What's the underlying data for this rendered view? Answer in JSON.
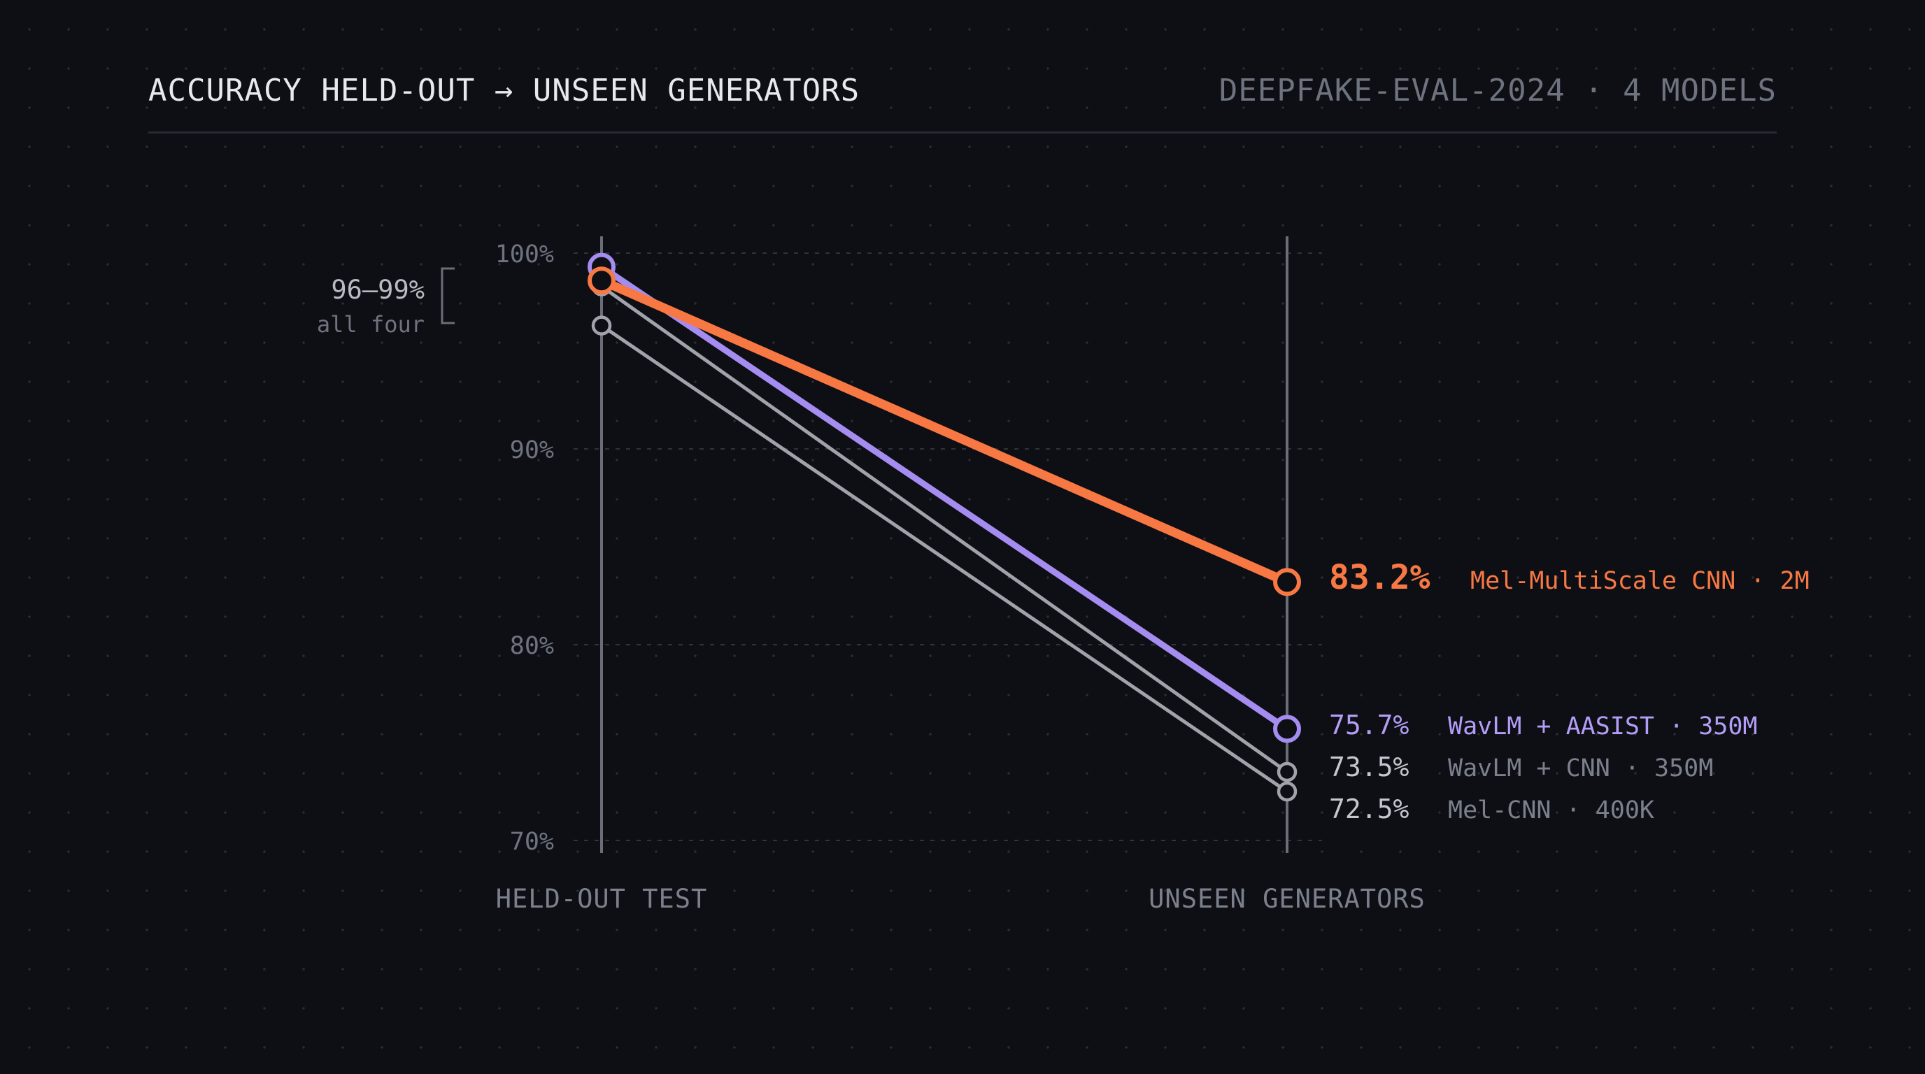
{
  "header": {
    "title": "ACCURACY HELD-OUT → UNSEEN GENERATORS",
    "subtitle": "DEEPFAKE-EVAL-2024 · 4 MODELS"
  },
  "chart_data": {
    "type": "line",
    "categories": [
      "HELD-OUT TEST",
      "UNSEEN GENERATORS"
    ],
    "ylim": [
      70,
      100
    ],
    "y_ticks": [
      {
        "value": 100,
        "label": "100%"
      },
      {
        "value": 90,
        "label": "90%"
      },
      {
        "value": 80,
        "label": "80%"
      },
      {
        "value": 70,
        "label": "70%"
      }
    ],
    "grid": true,
    "series": [
      {
        "name": "Mel-CNN · 400K",
        "values": [
          96.3,
          72.5
        ],
        "value_label": "72.5%",
        "color": "#a0a3ab",
        "highlight": false
      },
      {
        "name": "WavLM + CNN · 350M",
        "values": [
          98.3,
          73.5
        ],
        "value_label": "73.5%",
        "color": "#a0a3ab",
        "highlight": false
      },
      {
        "name": "WavLM + AASIST · 350M",
        "values": [
          99.3,
          75.7
        ],
        "value_label": "75.7%",
        "color": "#a58cf0",
        "highlight": true
      },
      {
        "name": "Mel-MultiScale CNN · 2M",
        "values": [
          98.6,
          83.2
        ],
        "value_label": "83.2%",
        "color": "#f87844",
        "highlight": true
      }
    ],
    "annotation": {
      "range_label": "96–99%",
      "range_sublabel": "all four"
    }
  }
}
